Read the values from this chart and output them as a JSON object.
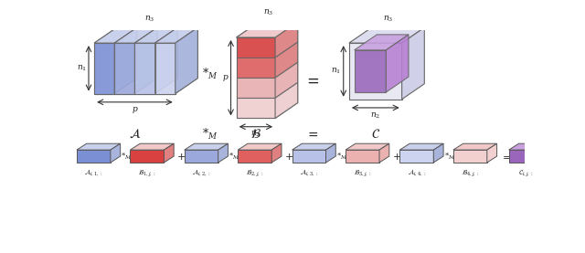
{
  "bg_color": "#ffffff",
  "ec": "#666666",
  "lw": 0.8,
  "blue1": "#7b8fd4",
  "blue2": "#9ba8dc",
  "blue3": "#b8c2e8",
  "blue4": "#cdd4f0",
  "blue_top": "#c8d0ec",
  "blue_side": "#a8b4dc",
  "red1": "#d94040",
  "red2": "#e06060",
  "red3": "#ebb0b0",
  "red4": "#f2d0d0",
  "red_top": "#f0c8c8",
  "red_side": "#e08080",
  "purple_front": "#9966bb",
  "purple_top": "#c9a0e0",
  "purple_side": "#b87fd4",
  "shell_front": "#e8e8f2",
  "shell_top": "#ddddf0",
  "shell_side": "#d0d0e8",
  "dash_color": "#999999",
  "arrow_color": "#333333",
  "text_color": "#222222",
  "lw_dash": 0.5
}
